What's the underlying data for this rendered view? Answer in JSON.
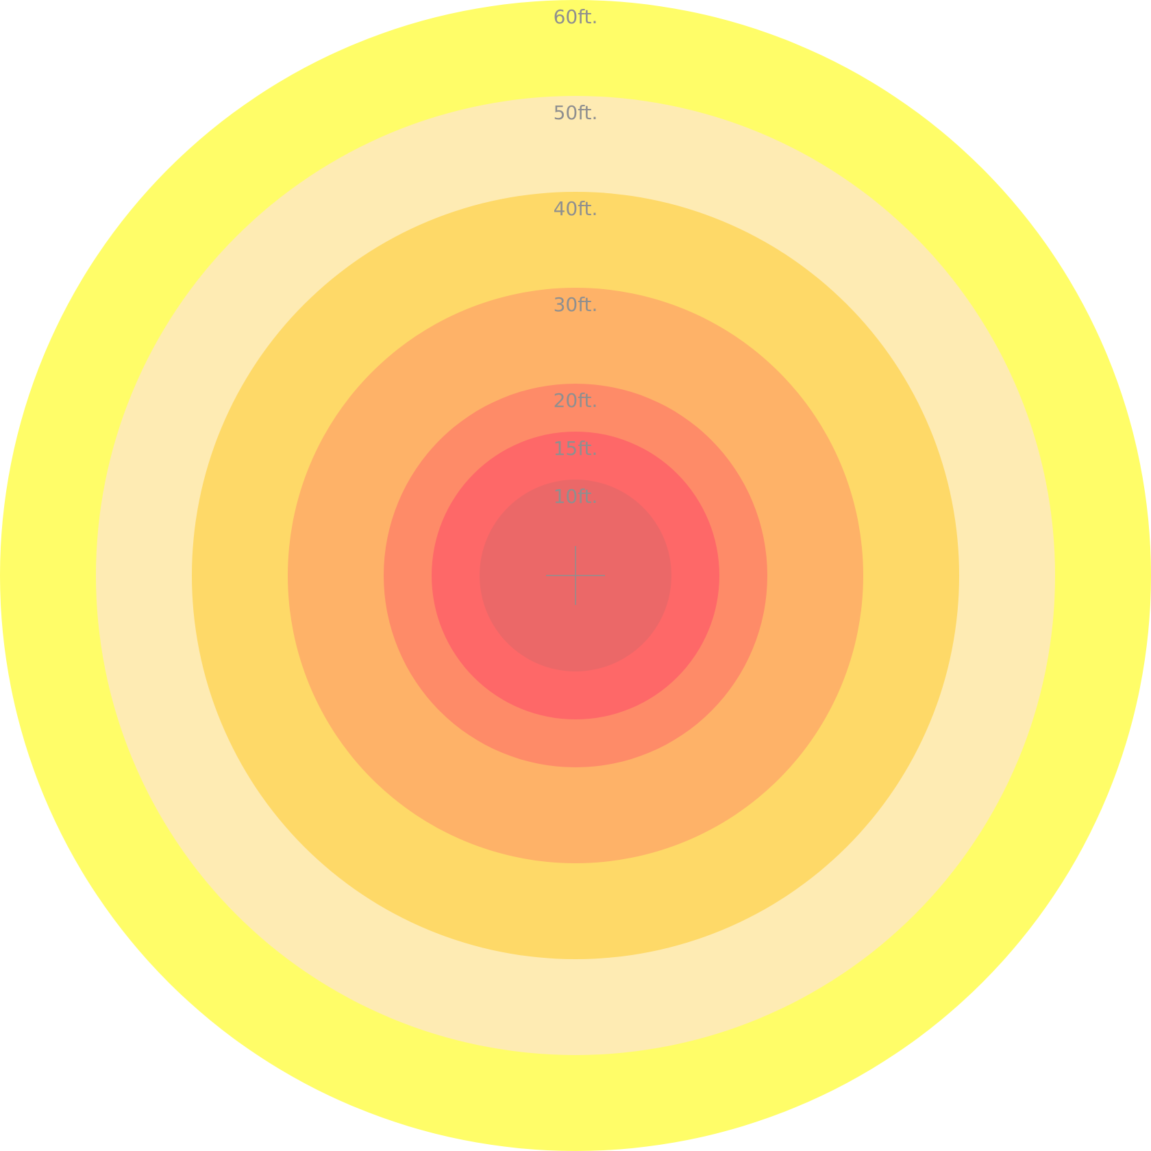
{
  "rings": [
    {
      "label": "60ft.",
      "feet": 60,
      "color": "#FFFD68"
    },
    {
      "label": "50ft.",
      "feet": 50,
      "color": "#FEEBB3"
    },
    {
      "label": "40ft.",
      "feet": 40,
      "color": "#FED968"
    },
    {
      "label": "30ft.",
      "feet": 30,
      "color": "#FEB268"
    },
    {
      "label": "20ft.",
      "feet": 20,
      "color": "#FE8B68"
    },
    {
      "label": "15ft.",
      "feet": 15,
      "color": "#FE6868"
    },
    {
      "label": "10ft.",
      "feet": 10,
      "color": "#EB6868"
    }
  ],
  "label_color": "#8F8F8F",
  "crosshair_color": "#8F8F8F",
  "center_marker": "crosshair-icon"
}
